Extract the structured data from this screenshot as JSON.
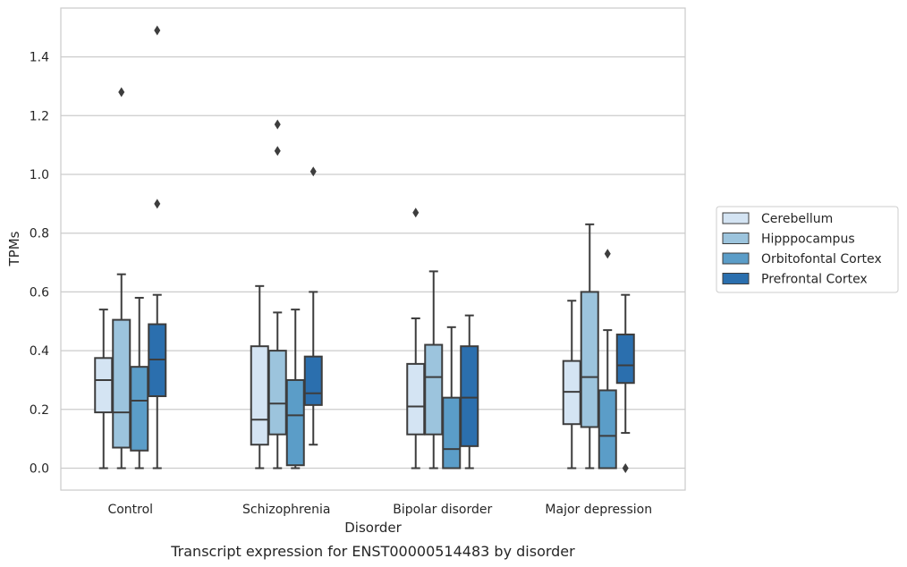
{
  "chart_data": {
    "type": "box",
    "title": "",
    "caption": "Transcript expression for ENST00000514483 by disorder",
    "xlabel": "Disorder",
    "ylabel": "TPMs",
    "ylim": [
      -0.07,
      1.57
    ],
    "yticks": [
      0.0,
      0.2,
      0.4,
      0.6,
      0.8,
      1.0,
      1.2,
      1.4
    ],
    "grid": true,
    "legend_position": "right",
    "categories": [
      "Control",
      "Schizophrenia",
      "Bipolar disorder",
      "Major depression"
    ],
    "series": [
      {
        "name": "Cerebellum",
        "color": "#d4e4f3",
        "boxes": [
          {
            "min": 0.0,
            "q1": 0.19,
            "median": 0.3,
            "q3": 0.375,
            "max": 0.54,
            "outliers": []
          },
          {
            "min": 0.0,
            "q1": 0.08,
            "median": 0.165,
            "q3": 0.415,
            "max": 0.62,
            "outliers": []
          },
          {
            "min": 0.0,
            "q1": 0.115,
            "median": 0.21,
            "q3": 0.355,
            "max": 0.51,
            "outliers": [
              0.87
            ]
          },
          {
            "min": 0.0,
            "q1": 0.15,
            "median": 0.26,
            "q3": 0.365,
            "max": 0.57,
            "outliers": []
          }
        ]
      },
      {
        "name": "Hipppocampus",
        "color": "#9cc4dd",
        "boxes": [
          {
            "min": 0.0,
            "q1": 0.07,
            "median": 0.19,
            "q3": 0.505,
            "max": 0.66,
            "outliers": [
              1.28
            ]
          },
          {
            "min": 0.0,
            "q1": 0.115,
            "median": 0.22,
            "q3": 0.4,
            "max": 0.53,
            "outliers": [
              1.08,
              1.17
            ]
          },
          {
            "min": 0.0,
            "q1": 0.115,
            "median": 0.31,
            "q3": 0.42,
            "max": 0.67,
            "outliers": []
          },
          {
            "min": 0.0,
            "q1": 0.14,
            "median": 0.31,
            "q3": 0.6,
            "max": 0.83,
            "outliers": []
          }
        ]
      },
      {
        "name": "Orbitofontal Cortex",
        "color": "#5b9dc8",
        "boxes": [
          {
            "min": 0.0,
            "q1": 0.06,
            "median": 0.23,
            "q3": 0.345,
            "max": 0.58,
            "outliers": []
          },
          {
            "min": 0.0,
            "q1": 0.01,
            "median": 0.18,
            "q3": 0.3,
            "max": 0.54,
            "outliers": []
          },
          {
            "min": 0.0,
            "q1": 0.0,
            "median": 0.065,
            "q3": 0.24,
            "max": 0.48,
            "outliers": []
          },
          {
            "min": 0.0,
            "q1": 0.0,
            "median": 0.11,
            "q3": 0.265,
            "max": 0.47,
            "outliers": [
              0.73
            ]
          }
        ]
      },
      {
        "name": "Prefrontal Cortex",
        "color": "#2b6fae",
        "boxes": [
          {
            "min": 0.0,
            "q1": 0.245,
            "median": 0.37,
            "q3": 0.49,
            "max": 0.59,
            "outliers": [
              0.9,
              1.49
            ]
          },
          {
            "min": 0.08,
            "q1": 0.215,
            "median": 0.255,
            "q3": 0.38,
            "max": 0.6,
            "outliers": [
              1.01
            ]
          },
          {
            "min": 0.0,
            "q1": 0.075,
            "median": 0.24,
            "q3": 0.415,
            "max": 0.52,
            "outliers": []
          },
          {
            "min": 0.12,
            "q1": 0.29,
            "median": 0.35,
            "q3": 0.455,
            "max": 0.59,
            "outliers": [
              0.0
            ]
          }
        ]
      }
    ]
  }
}
